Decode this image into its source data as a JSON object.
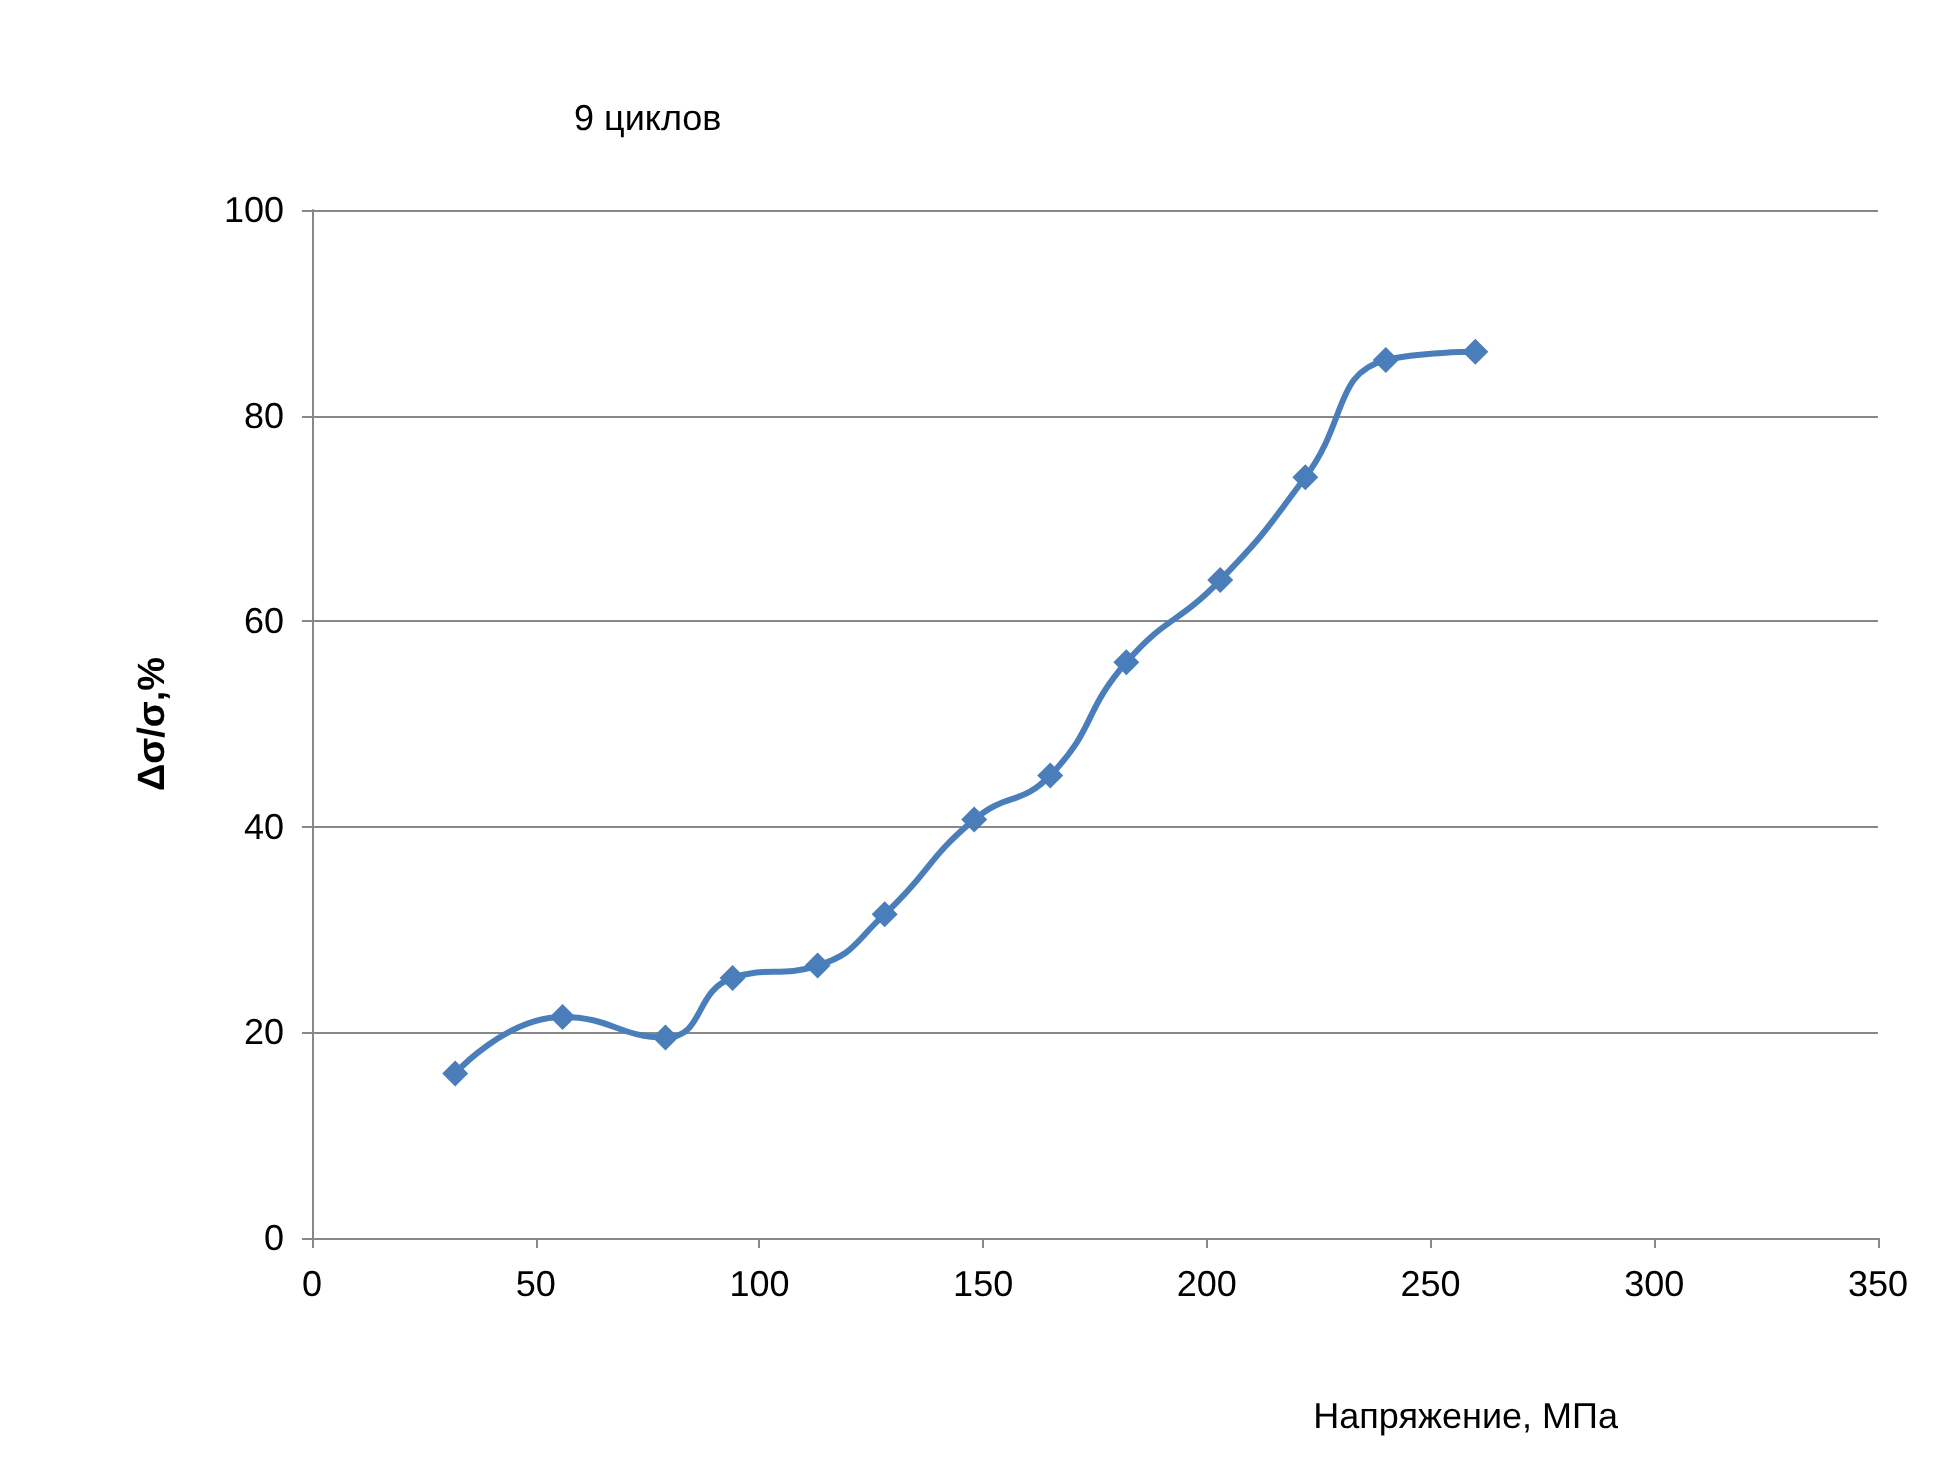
{
  "chart_data": {
    "type": "line",
    "title": "9 циклов",
    "xlabel": "Напряжение, МПа",
    "ylabel": "Δσ/σ,%",
    "series": [
      {
        "color": "#4a7ebb",
        "x": [
          32,
          56,
          79,
          94,
          113,
          128,
          148,
          165,
          182,
          203,
          222,
          240,
          260
        ],
        "values": [
          16,
          21.5,
          19.5,
          25.3,
          26.5,
          31.5,
          40.7,
          45,
          56,
          64,
          74,
          85.4,
          86.2
        ]
      }
    ],
    "xlim": [
      0,
      350
    ],
    "xticks": [
      0,
      50,
      100,
      150,
      200,
      250,
      300,
      350
    ],
    "ylim": [
      0,
      100
    ],
    "yticks": [
      0,
      20,
      40,
      60,
      80,
      100
    ],
    "grid": "y",
    "marker": "diamond",
    "line_style": "solid"
  }
}
